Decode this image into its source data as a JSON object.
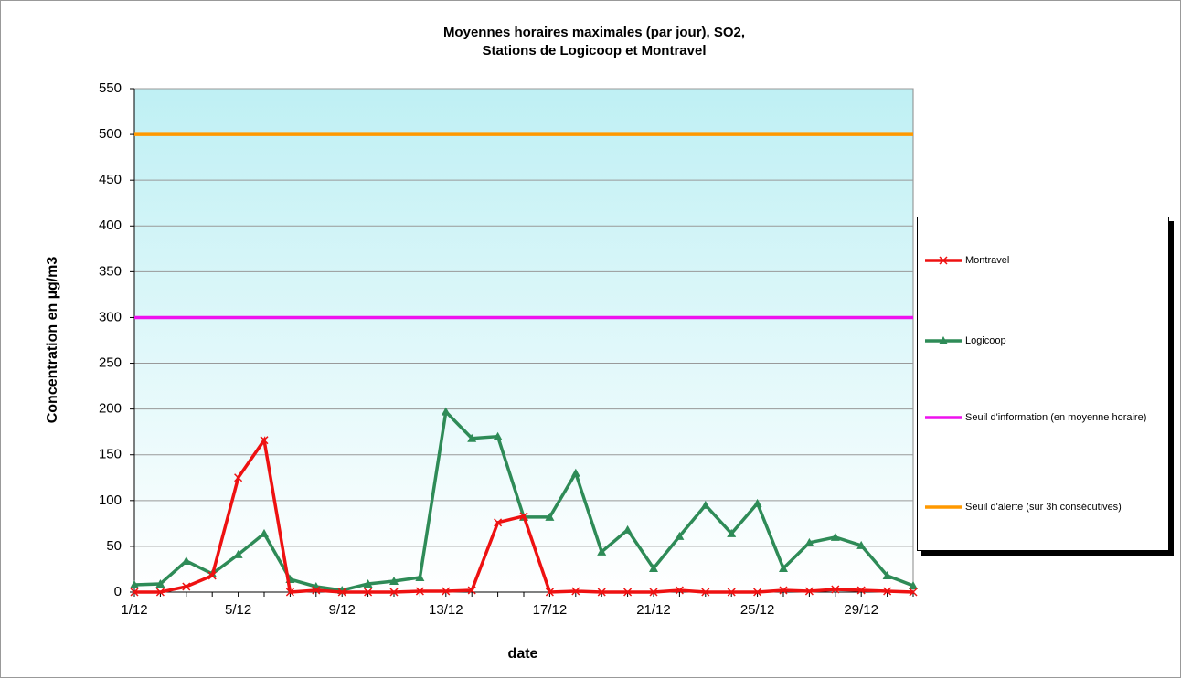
{
  "chart_data": {
    "type": "line",
    "title": [
      "Moyennes horaires maximales (par jour), SO2,",
      "Stations de Logicoop et Montravel"
    ],
    "x_label": "date",
    "y_label": "Concentration en µg/m3",
    "categories": [
      "1/12",
      null,
      null,
      null,
      "5/12",
      null,
      null,
      null,
      "9/12",
      null,
      null,
      null,
      "13/12",
      null,
      null,
      null,
      "17/12",
      null,
      null,
      null,
      "21/12",
      null,
      null,
      null,
      "25/12",
      null,
      null,
      null,
      "29/12",
      null,
      null
    ],
    "series": [
      {
        "name": "Montravel",
        "color": "#ee1111",
        "marker": "x",
        "values": [
          0,
          0,
          6,
          18,
          125,
          166,
          0,
          2,
          0,
          0,
          0,
          1,
          1,
          2,
          76,
          83,
          0,
          1,
          0,
          0,
          0,
          2,
          0,
          0,
          0,
          2,
          1,
          3,
          2,
          1,
          0
        ]
      },
      {
        "name": "Logicoop",
        "color": "#2e8b57",
        "marker": "triangle",
        "values": [
          8,
          9,
          34,
          20,
          41,
          64,
          14,
          6,
          2,
          9,
          12,
          16,
          197,
          168,
          170,
          82,
          82,
          130,
          44,
          68,
          26,
          61,
          95,
          64,
          97,
          26,
          54,
          60,
          51,
          18,
          7
        ]
      },
      {
        "name": "Seuil d'information (en moyenne horaire)",
        "color": "#ee11ee",
        "marker": "none",
        "values": [
          300,
          300,
          300,
          300,
          300,
          300,
          300,
          300,
          300,
          300,
          300,
          300,
          300,
          300,
          300,
          300,
          300,
          300,
          300,
          300,
          300,
          300,
          300,
          300,
          300,
          300,
          300,
          300,
          300,
          300,
          300
        ]
      },
      {
        "name": "Seuil d'alerte (sur 3h consécutives)",
        "color": "#ff9900",
        "marker": "none",
        "values": [
          500,
          500,
          500,
          500,
          500,
          500,
          500,
          500,
          500,
          500,
          500,
          500,
          500,
          500,
          500,
          500,
          500,
          500,
          500,
          500,
          500,
          500,
          500,
          500,
          500,
          500,
          500,
          500,
          500,
          500,
          500
        ]
      }
    ],
    "ylim": [
      0,
      550
    ],
    "yticks": [
      0,
      50,
      100,
      150,
      200,
      250,
      300,
      350,
      400,
      450,
      500,
      550
    ],
    "grid": true,
    "legend": "right"
  }
}
